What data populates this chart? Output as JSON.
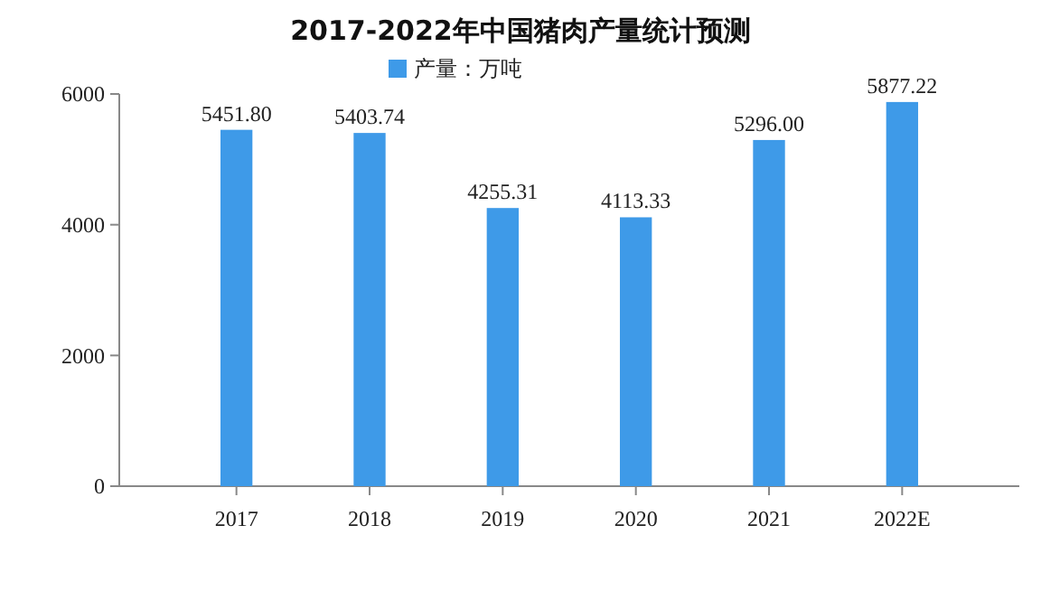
{
  "chart_data": {
    "type": "bar",
    "title": "2017-2022年中国猪肉产量统计预测",
    "categories": [
      "2017",
      "2018",
      "2019",
      "2020",
      "2021",
      "2022E"
    ],
    "series": [
      {
        "name": "产量：万吨",
        "color": "#3e9ae8",
        "values": [
          5451.8,
          5403.74,
          4255.31,
          4113.33,
          5296.0,
          5877.22
        ],
        "value_labels": [
          "5451.80",
          "5403.74",
          "4255.31",
          "4113.33",
          "5296.00",
          "5877.22"
        ]
      }
    ],
    "ylim": [
      0,
      6000
    ],
    "yticks": [
      0,
      2000,
      4000,
      6000
    ],
    "legend": "top",
    "grid": false
  }
}
